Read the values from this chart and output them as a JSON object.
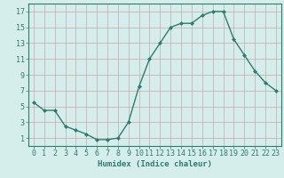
{
  "x": [
    0,
    1,
    2,
    3,
    4,
    5,
    6,
    7,
    8,
    9,
    10,
    11,
    12,
    13,
    14,
    15,
    16,
    17,
    18,
    19,
    20,
    21,
    22,
    23
  ],
  "y": [
    5.5,
    4.5,
    4.5,
    2.5,
    2.0,
    1.5,
    0.8,
    0.8,
    1.0,
    3.0,
    7.5,
    11.0,
    13.0,
    15.0,
    15.5,
    15.5,
    16.5,
    17.0,
    17.0,
    13.5,
    11.5,
    9.5,
    8.0,
    7.0
  ],
  "line_color": "#2d7d6e",
  "marker": "D",
  "marker_size": 2.0,
  "bg_color": "#d5eeeb",
  "grid_color": "#c9a9a9",
  "axis_color": "#2d7d6e",
  "xlabel": "Humidex (Indice chaleur)",
  "ylim": [
    0,
    18
  ],
  "xlim": [
    -0.5,
    23.5
  ],
  "yticks": [
    1,
    3,
    5,
    7,
    9,
    11,
    13,
    15,
    17
  ],
  "xticks": [
    0,
    1,
    2,
    3,
    4,
    5,
    6,
    7,
    8,
    9,
    10,
    11,
    12,
    13,
    14,
    15,
    16,
    17,
    18,
    19,
    20,
    21,
    22,
    23
  ],
  "xlabel_fontsize": 6.5,
  "tick_fontsize": 6.0,
  "linewidth": 1.0
}
